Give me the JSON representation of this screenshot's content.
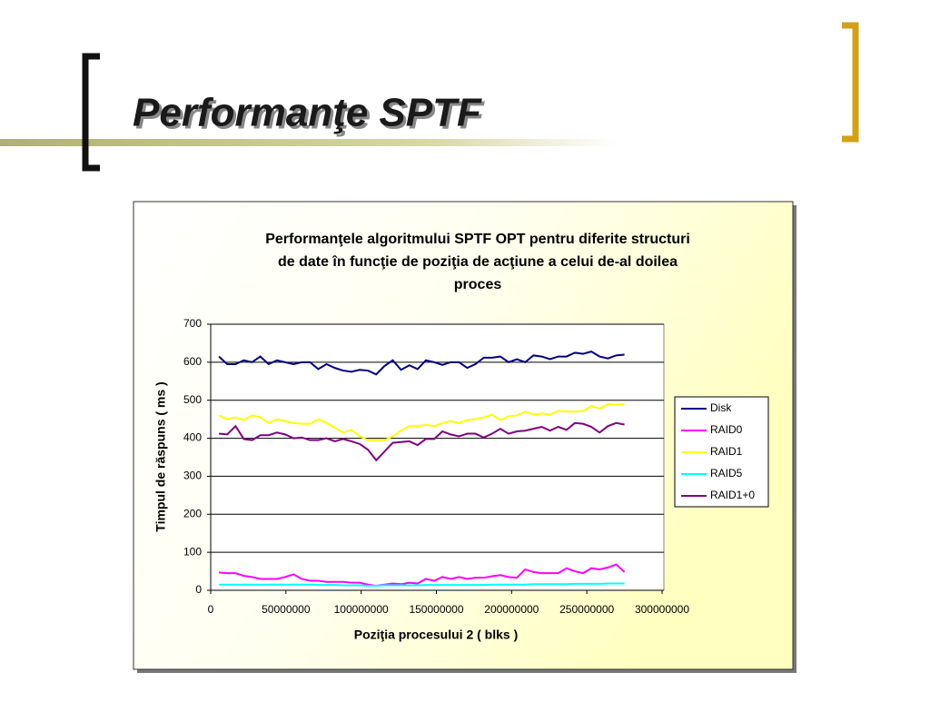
{
  "slide_title": "Performanţe SPTF",
  "chart_data": {
    "type": "line",
    "title": [
      "Performanţele algoritmului SPTF OPT pentru diferite structuri",
      "de date în funcţie de poziţia de acţiune a celui de-al doilea",
      "proces"
    ],
    "x_label": "Poziţia procesului 2 ( blks )",
    "y_label": "Timpul de răspuns ( ms )",
    "xlim": [
      0,
      300000000
    ],
    "xticks": [
      0,
      50000000,
      100000000,
      150000000,
      200000000,
      250000000,
      300000000
    ],
    "ylim": [
      0,
      700
    ],
    "yticks": [
      0,
      100,
      200,
      300,
      400,
      500,
      600,
      700
    ],
    "grid": true,
    "legend": "right",
    "x": [
      5500000,
      11000000,
      16500000,
      22000000,
      27500000,
      33000000,
      38500000,
      44000000,
      49500000,
      55000000,
      60500000,
      66000000,
      71500000,
      77000000,
      82500000,
      88000000,
      93500000,
      99000000,
      104500000,
      110000000,
      115500000,
      121000000,
      126500000,
      132000000,
      137500000,
      143000000,
      148500000,
      154000000,
      159500000,
      165000000,
      170500000,
      176000000,
      181500000,
      187000000,
      192500000,
      198000000,
      203500000,
      209000000,
      214500000,
      220000000,
      225500000,
      231000000,
      236500000,
      242000000,
      247500000,
      253000000,
      258500000,
      264000000,
      269500000,
      275000000
    ],
    "series": [
      {
        "name": "Disk",
        "color": "#000080",
        "values": [
          615,
          595,
          595,
          605,
          600,
          615,
          595,
          605,
          600,
          595,
          600,
          600,
          582,
          595,
          585,
          578,
          575,
          580,
          578,
          568,
          590,
          605,
          580,
          592,
          582,
          605,
          600,
          593,
          600,
          600,
          585,
          595,
          612,
          612,
          615,
          600,
          608,
          600,
          618,
          615,
          608,
          615,
          615,
          625,
          622,
          628,
          615,
          610,
          618,
          620
        ]
      },
      {
        "name": "RAID0",
        "color": "#ff00ff",
        "values": [
          47,
          45,
          45,
          38,
          35,
          30,
          30,
          30,
          35,
          42,
          30,
          25,
          25,
          22,
          22,
          22,
          20,
          20,
          15,
          12,
          15,
          18,
          16,
          20,
          18,
          30,
          25,
          35,
          30,
          35,
          30,
          33,
          33,
          37,
          40,
          35,
          33,
          55,
          48,
          45,
          45,
          45,
          58,
          50,
          45,
          58,
          55,
          60,
          68,
          48
        ]
      },
      {
        "name": "RAID1",
        "color": "#ffff00",
        "values": [
          460,
          450,
          455,
          448,
          460,
          455,
          440,
          450,
          445,
          440,
          438,
          438,
          450,
          440,
          428,
          415,
          422,
          405,
          395,
          395,
          395,
          405,
          420,
          432,
          432,
          435,
          432,
          440,
          445,
          440,
          448,
          450,
          455,
          462,
          448,
          458,
          460,
          470,
          462,
          465,
          462,
          472,
          470,
          470,
          472,
          485,
          478,
          490,
          488,
          490
        ]
      },
      {
        "name": "RAID5",
        "color": "#00ffff",
        "values": [
          15,
          15,
          15,
          15,
          15,
          15,
          15,
          15,
          15,
          15,
          15,
          15,
          14,
          14,
          14,
          13,
          13,
          13,
          12,
          12,
          13,
          13,
          13,
          13,
          13,
          14,
          14,
          14,
          14,
          14,
          14,
          14,
          14,
          15,
          15,
          15,
          15,
          15,
          16,
          16,
          16,
          16,
          16,
          17,
          17,
          17,
          17,
          18,
          18,
          18
        ]
      },
      {
        "name": "RAID1+0",
        "color": "#800080",
        "values": [
          412,
          410,
          432,
          398,
          395,
          408,
          408,
          415,
          410,
          400,
          402,
          395,
          395,
          400,
          392,
          398,
          392,
          385,
          370,
          342,
          365,
          388,
          390,
          392,
          382,
          398,
          398,
          418,
          410,
          405,
          412,
          412,
          402,
          412,
          425,
          412,
          418,
          420,
          425,
          430,
          420,
          430,
          422,
          440,
          438,
          430,
          415,
          432,
          440,
          436
        ]
      }
    ]
  }
}
